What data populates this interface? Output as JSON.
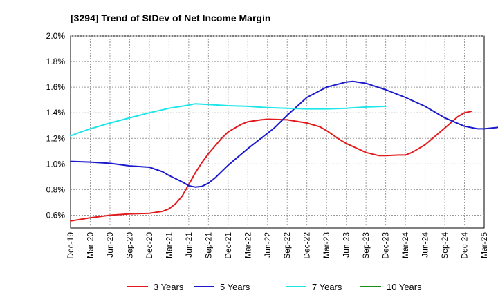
{
  "chart_data": {
    "type": "line",
    "title": "[3294]  Trend of StDev of Net Income Margin",
    "xlabel": "",
    "ylabel": "",
    "ylim": [
      0.5,
      2.0
    ],
    "y_ticks": [
      "0.6%",
      "0.8%",
      "1.0%",
      "1.2%",
      "1.4%",
      "1.6%",
      "1.8%",
      "2.0%"
    ],
    "y_tick_values": [
      0.6,
      0.8,
      1.0,
      1.2,
      1.4,
      1.6,
      1.8,
      2.0
    ],
    "x_ticks": [
      "Dec-19",
      "Mar-20",
      "Jun-20",
      "Sep-20",
      "Dec-20",
      "Mar-21",
      "Jun-21",
      "Sep-21",
      "Dec-21",
      "Mar-22",
      "Jun-22",
      "Sep-22",
      "Dec-22",
      "Mar-23",
      "Jun-23",
      "Sep-23",
      "Dec-23",
      "Mar-24",
      "Jun-24",
      "Sep-24",
      "Dec-24",
      "Mar-25"
    ],
    "grid": true,
    "legend_position": "bottom",
    "series": [
      {
        "name": "3 Years",
        "color": "#e31a1c",
        "points": [
          [
            "Dec-19",
            0.555
          ],
          [
            "Mar-20",
            0.58
          ],
          [
            "Jun-20",
            0.6
          ],
          [
            "Sep-20",
            0.61
          ],
          [
            "Dec-20",
            0.615
          ],
          [
            "Feb-21",
            0.63
          ],
          [
            "Mar-21",
            0.65
          ],
          [
            "Apr-21",
            0.69
          ],
          [
            "May-21",
            0.75
          ],
          [
            "Jun-21",
            0.84
          ],
          [
            "Jul-21",
            0.93
          ],
          [
            "Aug-21",
            1.01
          ],
          [
            "Sep-21",
            1.08
          ],
          [
            "Oct-21",
            1.14
          ],
          [
            "Nov-21",
            1.2
          ],
          [
            "Dec-21",
            1.25
          ],
          [
            "Feb-22",
            1.31
          ],
          [
            "Mar-22",
            1.33
          ],
          [
            "May-22",
            1.345
          ],
          [
            "Jun-22",
            1.35
          ],
          [
            "Sep-22",
            1.345
          ],
          [
            "Dec-22",
            1.32
          ],
          [
            "Feb-23",
            1.29
          ],
          [
            "Mar-23",
            1.26
          ],
          [
            "May-23",
            1.19
          ],
          [
            "Jun-23",
            1.16
          ],
          [
            "Sep-23",
            1.09
          ],
          [
            "Nov-23",
            1.065
          ],
          [
            "Dec-23",
            1.065
          ],
          [
            "Feb-24",
            1.07
          ],
          [
            "Mar-24",
            1.07
          ],
          [
            "Apr-24",
            1.09
          ],
          [
            "Jun-24",
            1.15
          ],
          [
            "Sep-24",
            1.28
          ],
          [
            "Nov-24",
            1.37
          ],
          [
            "Dec-24",
            1.4
          ],
          [
            "Jan-25",
            1.41
          ]
        ]
      },
      {
        "name": "5 Years",
        "color": "#1a1acc",
        "points": [
          [
            "Dec-19",
            1.02
          ],
          [
            "Mar-20",
            1.015
          ],
          [
            "Jun-20",
            1.005
          ],
          [
            "Sep-20",
            0.985
          ],
          [
            "Dec-20",
            0.975
          ],
          [
            "Feb-21",
            0.94
          ],
          [
            "Mar-21",
            0.91
          ],
          [
            "May-21",
            0.86
          ],
          [
            "Jun-21",
            0.83
          ],
          [
            "Jul-21",
            0.82
          ],
          [
            "Aug-21",
            0.825
          ],
          [
            "Sep-21",
            0.85
          ],
          [
            "Oct-21",
            0.89
          ],
          [
            "Dec-21",
            0.99
          ],
          [
            "Mar-22",
            1.12
          ],
          [
            "Jun-22",
            1.24
          ],
          [
            "Jul-22",
            1.28
          ],
          [
            "Sep-22",
            1.38
          ],
          [
            "Dec-22",
            1.52
          ],
          [
            "Mar-23",
            1.6
          ],
          [
            "Jun-23",
            1.64
          ],
          [
            "Jul-23",
            1.645
          ],
          [
            "Sep-23",
            1.63
          ],
          [
            "Dec-23",
            1.58
          ],
          [
            "Mar-24",
            1.52
          ],
          [
            "Jun-24",
            1.45
          ],
          [
            "Sep-24",
            1.36
          ],
          [
            "Dec-24",
            1.295
          ],
          [
            "Feb-25",
            1.275
          ],
          [
            "Mar-25",
            1.275
          ],
          [
            "May-25",
            1.285
          ],
          [
            "Jun-25",
            1.3
          ]
        ]
      },
      {
        "name": "7 Years",
        "color": "#1de6ea",
        "points": [
          [
            "Dec-19",
            1.22
          ],
          [
            "Jan-20",
            1.24
          ],
          [
            "Mar-20",
            1.275
          ],
          [
            "Jun-20",
            1.32
          ],
          [
            "Sep-20",
            1.36
          ],
          [
            "Dec-20",
            1.4
          ],
          [
            "Mar-21",
            1.435
          ],
          [
            "Jun-21",
            1.46
          ],
          [
            "Jul-21",
            1.47
          ],
          [
            "Sep-21",
            1.465
          ],
          [
            "Dec-21",
            1.455
          ],
          [
            "Mar-22",
            1.45
          ],
          [
            "Jun-22",
            1.44
          ],
          [
            "Sep-22",
            1.435
          ],
          [
            "Dec-22",
            1.43
          ],
          [
            "Mar-23",
            1.43
          ],
          [
            "Jun-23",
            1.435
          ],
          [
            "Sep-23",
            1.445
          ],
          [
            "Dec-23",
            1.45
          ]
        ]
      },
      {
        "name": "10 Years",
        "color": "#1a8c1a",
        "points": []
      }
    ]
  }
}
